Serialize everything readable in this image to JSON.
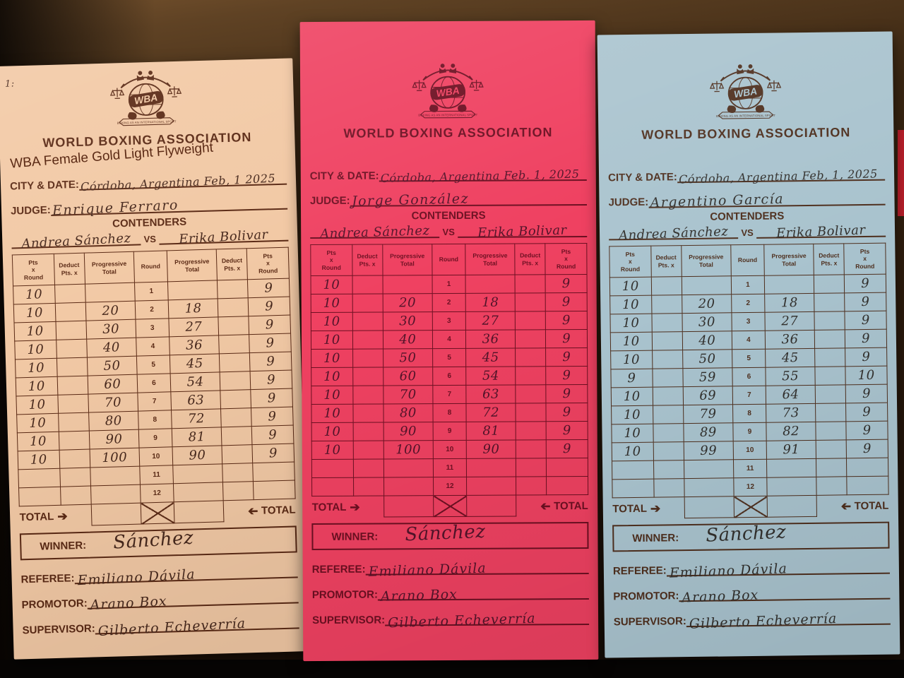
{
  "scene": {
    "description_colors": {
      "leather_brown": "#5f4224",
      "shadow_black": "#070504",
      "red_edge": "#bb1f2b"
    }
  },
  "form": {
    "org_name": "WORLD BOXING ASSOCIATION",
    "logo": {
      "monogram": "WBA",
      "banner": "BOXING AS AN INTERNATIONAL SPORT"
    },
    "labels": {
      "city_date": "CITY & DATE:",
      "judge": "JUDGE:",
      "contenders": "CONTENDERS",
      "vs": "VS",
      "total": "TOTAL",
      "winner": "WINNER:",
      "referee": "REFEREE:",
      "promotor": "PROMOTOR:",
      "supervisor": "SUPERVISOR:"
    },
    "icons": {
      "right_arrow": "➔",
      "left_arrow": "➔"
    },
    "table_headers": [
      "Pts\nx\nRound",
      "Deduct\nPts. x",
      "Progressive\nTotal",
      "Round",
      "Progressive\nTotal",
      "Deduct\nPts. x",
      "Pts\nx\nRound"
    ]
  },
  "cards": [
    {
      "id": "judge-card-cream",
      "colors": {
        "paper": "#f2c9a5",
        "ink": "#5b2a15",
        "pen": "#48291d"
      },
      "corner_mark": "1:",
      "title_annotation": "WBA Female Gold Light Flyweight",
      "city_date": "Córdoba, Argentina Feb, 1 2025",
      "judge": "Enrique Ferraro",
      "contender_a": "Andrea Sánchez",
      "contender_b": "Erika Bolivar",
      "rounds": [
        {
          "round": "1",
          "pts_a": "10",
          "deduct_a": "",
          "prog_a": "",
          "prog_b": "",
          "deduct_b": "",
          "pts_b": "9"
        },
        {
          "round": "2",
          "pts_a": "10",
          "deduct_a": "",
          "prog_a": "20",
          "prog_b": "18",
          "deduct_b": "",
          "pts_b": "9"
        },
        {
          "round": "3",
          "pts_a": "10",
          "deduct_a": "",
          "prog_a": "30",
          "prog_b": "27",
          "deduct_b": "",
          "pts_b": "9"
        },
        {
          "round": "4",
          "pts_a": "10",
          "deduct_a": "",
          "prog_a": "40",
          "prog_b": "36",
          "deduct_b": "",
          "pts_b": "9"
        },
        {
          "round": "5",
          "pts_a": "10",
          "deduct_a": "",
          "prog_a": "50",
          "prog_b": "45",
          "deduct_b": "",
          "pts_b": "9"
        },
        {
          "round": "6",
          "pts_a": "10",
          "deduct_a": "",
          "prog_a": "60",
          "prog_b": "54",
          "deduct_b": "",
          "pts_b": "9"
        },
        {
          "round": "7",
          "pts_a": "10",
          "deduct_a": "",
          "prog_a": "70",
          "prog_b": "63",
          "deduct_b": "",
          "pts_b": "9"
        },
        {
          "round": "8",
          "pts_a": "10",
          "deduct_a": "",
          "prog_a": "80",
          "prog_b": "72",
          "deduct_b": "",
          "pts_b": "9"
        },
        {
          "round": "9",
          "pts_a": "10",
          "deduct_a": "",
          "prog_a": "90",
          "prog_b": "81",
          "deduct_b": "",
          "pts_b": "9"
        },
        {
          "round": "10",
          "pts_a": "10",
          "deduct_a": "",
          "prog_a": "100",
          "prog_b": "90",
          "deduct_b": "",
          "pts_b": "9"
        },
        {
          "round": "11",
          "pts_a": "",
          "deduct_a": "",
          "prog_a": "",
          "prog_b": "",
          "deduct_b": "",
          "pts_b": ""
        },
        {
          "round": "12",
          "pts_a": "",
          "deduct_a": "",
          "prog_a": "",
          "prog_b": "",
          "deduct_b": "",
          "pts_b": ""
        }
      ],
      "winner": "Sánchez",
      "referee": "Emiliano Dávila",
      "promotor": "Arano Box",
      "supervisor": "Gilberto Echeverría"
    },
    {
      "id": "judge-card-pink",
      "colors": {
        "paper": "#ef4161",
        "ink": "#6d1022",
        "pen": "#53142a"
      },
      "title_annotation": "",
      "city_date": "Córdoba, Argentina Feb. 1, 2025",
      "judge": "Jorge González",
      "contender_a": "Andrea Sánchez",
      "contender_b": "Erika Bolivar",
      "rounds": [
        {
          "round": "1",
          "pts_a": "10",
          "deduct_a": "",
          "prog_a": "",
          "prog_b": "",
          "deduct_b": "",
          "pts_b": "9"
        },
        {
          "round": "2",
          "pts_a": "10",
          "deduct_a": "",
          "prog_a": "20",
          "prog_b": "18",
          "deduct_b": "",
          "pts_b": "9"
        },
        {
          "round": "3",
          "pts_a": "10",
          "deduct_a": "",
          "prog_a": "30",
          "prog_b": "27",
          "deduct_b": "",
          "pts_b": "9"
        },
        {
          "round": "4",
          "pts_a": "10",
          "deduct_a": "",
          "prog_a": "40",
          "prog_b": "36",
          "deduct_b": "",
          "pts_b": "9"
        },
        {
          "round": "5",
          "pts_a": "10",
          "deduct_a": "",
          "prog_a": "50",
          "prog_b": "45",
          "deduct_b": "",
          "pts_b": "9"
        },
        {
          "round": "6",
          "pts_a": "10",
          "deduct_a": "",
          "prog_a": "60",
          "prog_b": "54",
          "deduct_b": "",
          "pts_b": "9"
        },
        {
          "round": "7",
          "pts_a": "10",
          "deduct_a": "",
          "prog_a": "70",
          "prog_b": "63",
          "deduct_b": "",
          "pts_b": "9"
        },
        {
          "round": "8",
          "pts_a": "10",
          "deduct_a": "",
          "prog_a": "80",
          "prog_b": "72",
          "deduct_b": "",
          "pts_b": "9"
        },
        {
          "round": "9",
          "pts_a": "10",
          "deduct_a": "",
          "prog_a": "90",
          "prog_b": "81",
          "deduct_b": "",
          "pts_b": "9"
        },
        {
          "round": "10",
          "pts_a": "10",
          "deduct_a": "",
          "prog_a": "100",
          "prog_b": "90",
          "deduct_b": "",
          "pts_b": "9"
        },
        {
          "round": "11",
          "pts_a": "",
          "deduct_a": "",
          "prog_a": "",
          "prog_b": "",
          "deduct_b": "",
          "pts_b": ""
        },
        {
          "round": "12",
          "pts_a": "",
          "deduct_a": "",
          "prog_a": "",
          "prog_b": "",
          "deduct_b": "",
          "pts_b": ""
        }
      ],
      "winner": "Sánchez",
      "referee": "Emiliano Dávila",
      "promotor": "Arano Box",
      "supervisor": "Gilberto Echeverría"
    },
    {
      "id": "judge-card-blue",
      "colors": {
        "paper": "#a9c3ce",
        "ink": "#4e2f1e",
        "pen": "#32302d"
      },
      "title_annotation": "",
      "city_date": "Córdoba, Argentina Feb, 1, 2025",
      "judge": "Argentino García",
      "contender_a": "Andrea Sánchez",
      "contender_b": "Erika Bolivar",
      "rounds": [
        {
          "round": "1",
          "pts_a": "10",
          "deduct_a": "",
          "prog_a": "",
          "prog_b": "",
          "deduct_b": "",
          "pts_b": "9"
        },
        {
          "round": "2",
          "pts_a": "10",
          "deduct_a": "",
          "prog_a": "20",
          "prog_b": "18",
          "deduct_b": "",
          "pts_b": "9"
        },
        {
          "round": "3",
          "pts_a": "10",
          "deduct_a": "",
          "prog_a": "30",
          "prog_b": "27",
          "deduct_b": "",
          "pts_b": "9"
        },
        {
          "round": "4",
          "pts_a": "10",
          "deduct_a": "",
          "prog_a": "40",
          "prog_b": "36",
          "deduct_b": "",
          "pts_b": "9"
        },
        {
          "round": "5",
          "pts_a": "10",
          "deduct_a": "",
          "prog_a": "50",
          "prog_b": "45",
          "deduct_b": "",
          "pts_b": "9"
        },
        {
          "round": "6",
          "pts_a": "9",
          "deduct_a": "",
          "prog_a": "59",
          "prog_b": "55",
          "deduct_b": "",
          "pts_b": "10"
        },
        {
          "round": "7",
          "pts_a": "10",
          "deduct_a": "",
          "prog_a": "69",
          "prog_b": "64",
          "deduct_b": "",
          "pts_b": "9"
        },
        {
          "round": "8",
          "pts_a": "10",
          "deduct_a": "",
          "prog_a": "79",
          "prog_b": "73",
          "deduct_b": "",
          "pts_b": "9"
        },
        {
          "round": "9",
          "pts_a": "10",
          "deduct_a": "",
          "prog_a": "89",
          "prog_b": "82",
          "deduct_b": "",
          "pts_b": "9"
        },
        {
          "round": "10",
          "pts_a": "10",
          "deduct_a": "",
          "prog_a": "99",
          "prog_b": "91",
          "deduct_b": "",
          "pts_b": "9"
        },
        {
          "round": "11",
          "pts_a": "",
          "deduct_a": "",
          "prog_a": "",
          "prog_b": "",
          "deduct_b": "",
          "pts_b": ""
        },
        {
          "round": "12",
          "pts_a": "",
          "deduct_a": "",
          "prog_a": "",
          "prog_b": "",
          "deduct_b": "",
          "pts_b": ""
        }
      ],
      "winner": "Sánchez",
      "referee": "Emiliano Dávila",
      "promotor": "Arano Box",
      "supervisor": "Gilberto Echeverría"
    }
  ]
}
